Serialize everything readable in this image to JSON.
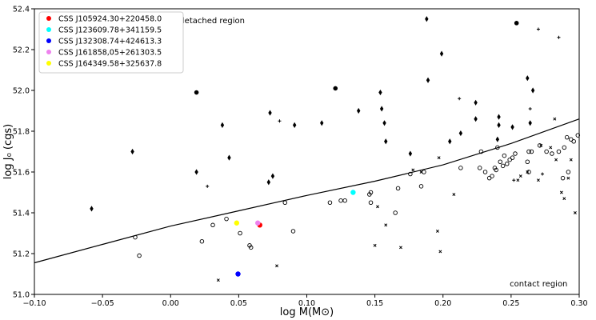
{
  "chart_data": {
    "type": "scatter",
    "xlabel": "log M(M⊙)",
    "ylabel": "log J₀ (cgs)",
    "xlim": [
      -0.1,
      0.3
    ],
    "ylim": [
      51.0,
      52.4
    ],
    "xticks": [
      "−0.10",
      "−0.05",
      "0.00",
      "0.05",
      "0.10",
      "0.15",
      "0.20",
      "0.25",
      "0.30"
    ],
    "xtick_values": [
      -0.1,
      -0.05,
      0.0,
      0.05,
      0.1,
      0.15,
      0.2,
      0.25,
      0.3
    ],
    "yticks": [
      "51.0",
      "51.2",
      "51.4",
      "51.6",
      "51.8",
      "52.0",
      "52.2",
      "52.4"
    ],
    "ytick_values": [
      51.0,
      51.2,
      51.4,
      51.6,
      51.8,
      52.0,
      52.2,
      52.4
    ],
    "grid": false,
    "legend_position": "top-left",
    "annotations": [
      {
        "text": "detached region",
        "x": 0.0065,
        "y": 52.33
      },
      {
        "text": "contact region",
        "x": 0.249,
        "y": 51.04
      }
    ],
    "highlighted": [
      {
        "name": "CSS J105924.30+220458.0",
        "color": "#ff0000",
        "x": 0.0655,
        "y": 51.34
      },
      {
        "name": "CSS J123609.78+341159.5",
        "color": "#00ffff",
        "x": 0.134,
        "y": 51.5
      },
      {
        "name": "CSS J132308.74+424613.3",
        "color": "#0000ff",
        "x": 0.0495,
        "y": 51.1
      },
      {
        "name": "CSS J161858,05+261303.5",
        "color": "#ee82ee",
        "x": 0.064,
        "y": 51.35
      },
      {
        "name": "CSS J164349.58+325637.8",
        "color": "#ffff00",
        "x": 0.0485,
        "y": 51.35
      }
    ],
    "boundary_curve": [
      [
        -0.1,
        51.155
      ],
      [
        -0.05,
        51.245
      ],
      [
        0.0,
        51.335
      ],
      [
        0.05,
        51.41
      ],
      [
        0.1,
        51.485
      ],
      [
        0.15,
        51.555
      ],
      [
        0.2,
        51.635
      ],
      [
        0.25,
        51.74
      ],
      [
        0.3,
        51.86
      ]
    ],
    "series": [
      {
        "marker": "diamond",
        "values": [
          [
            -0.058,
            51.42
          ],
          [
            -0.028,
            51.7
          ],
          [
            0.019,
            51.6
          ],
          [
            0.038,
            51.83
          ],
          [
            0.043,
            51.67
          ],
          [
            0.073,
            51.89
          ],
          [
            0.072,
            51.55
          ],
          [
            0.075,
            51.58
          ],
          [
            0.091,
            51.83
          ],
          [
            0.111,
            51.84
          ],
          [
            0.138,
            51.9
          ],
          [
            0.154,
            51.99
          ],
          [
            0.155,
            51.91
          ],
          [
            0.157,
            51.84
          ],
          [
            0.158,
            51.75
          ],
          [
            0.176,
            51.69
          ],
          [
            0.188,
            52.35
          ],
          [
            0.189,
            52.05
          ],
          [
            0.199,
            52.18
          ],
          [
            0.205,
            51.75
          ],
          [
            0.213,
            51.79
          ],
          [
            0.224,
            51.94
          ],
          [
            0.224,
            51.86
          ],
          [
            0.241,
            51.87
          ],
          [
            0.241,
            51.83
          ],
          [
            0.24,
            51.76
          ],
          [
            0.251,
            51.82
          ],
          [
            0.262,
            52.06
          ],
          [
            0.264,
            51.84
          ],
          [
            0.266,
            52.0
          ]
        ]
      },
      {
        "marker": "filled-circle",
        "values": [
          [
            0.019,
            51.99
          ],
          [
            0.121,
            52.01
          ],
          [
            0.254,
            52.33
          ]
        ]
      },
      {
        "marker": "open-circle",
        "values": [
          [
            -0.026,
            51.28
          ],
          [
            -0.023,
            51.19
          ],
          [
            0.023,
            51.26
          ],
          [
            0.031,
            51.34
          ],
          [
            0.041,
            51.37
          ],
          [
            0.051,
            51.3
          ],
          [
            0.058,
            51.24
          ],
          [
            0.059,
            51.23
          ],
          [
            0.084,
            51.45
          ],
          [
            0.09,
            51.31
          ],
          [
            0.117,
            51.45
          ],
          [
            0.125,
            51.46
          ],
          [
            0.128,
            51.46
          ],
          [
            0.146,
            51.49
          ],
          [
            0.147,
            51.5
          ],
          [
            0.147,
            51.45
          ],
          [
            0.165,
            51.4
          ],
          [
            0.167,
            51.52
          ],
          [
            0.176,
            51.59
          ],
          [
            0.184,
            51.53
          ],
          [
            0.186,
            51.6
          ],
          [
            0.213,
            51.62
          ],
          [
            0.227,
            51.62
          ],
          [
            0.228,
            51.7
          ],
          [
            0.231,
            51.6
          ],
          [
            0.234,
            51.57
          ],
          [
            0.236,
            51.58
          ],
          [
            0.238,
            51.62
          ],
          [
            0.239,
            51.61
          ],
          [
            0.24,
            51.72
          ],
          [
            0.242,
            51.65
          ],
          [
            0.244,
            51.63
          ],
          [
            0.245,
            51.68
          ],
          [
            0.247,
            51.64
          ],
          [
            0.249,
            51.66
          ],
          [
            0.251,
            51.67
          ],
          [
            0.253,
            51.69
          ],
          [
            0.262,
            51.65
          ],
          [
            0.263,
            51.7
          ],
          [
            0.265,
            51.7
          ],
          [
            0.271,
            51.73
          ],
          [
            0.276,
            51.7
          ],
          [
            0.28,
            51.69
          ],
          [
            0.285,
            51.7
          ],
          [
            0.289,
            51.72
          ],
          [
            0.291,
            51.77
          ],
          [
            0.292,
            51.6
          ],
          [
            0.294,
            51.76
          ],
          [
            0.296,
            51.75
          ],
          [
            0.299,
            51.78
          ],
          [
            0.288,
            51.57
          ],
          [
            0.263,
            51.6
          ]
        ]
      },
      {
        "marker": "plus",
        "values": [
          [
            0.027,
            51.53
          ],
          [
            0.08,
            51.85
          ],
          [
            0.212,
            51.96
          ],
          [
            0.264,
            51.91
          ],
          [
            0.27,
            52.3
          ],
          [
            0.285,
            52.26
          ],
          [
            0.252,
            51.56
          ],
          [
            0.273,
            51.59
          ]
        ]
      },
      {
        "marker": "x",
        "values": [
          [
            0.035,
            51.07
          ],
          [
            0.078,
            51.14
          ],
          [
            0.15,
            51.24
          ],
          [
            0.152,
            51.43
          ],
          [
            0.158,
            51.34
          ],
          [
            0.169,
            51.23
          ],
          [
            0.178,
            51.61
          ],
          [
            0.184,
            51.6
          ],
          [
            0.196,
            51.31
          ],
          [
            0.197,
            51.67
          ],
          [
            0.198,
            51.21
          ],
          [
            0.208,
            51.49
          ],
          [
            0.255,
            51.56
          ],
          [
            0.262,
            51.6
          ],
          [
            0.27,
            51.56
          ],
          [
            0.272,
            51.73
          ],
          [
            0.279,
            51.72
          ],
          [
            0.282,
            51.86
          ],
          [
            0.287,
            51.5
          ],
          [
            0.289,
            51.47
          ],
          [
            0.292,
            51.57
          ],
          [
            0.297,
            51.4
          ],
          [
            0.294,
            51.66
          ],
          [
            0.283,
            51.66
          ],
          [
            0.257,
            51.58
          ]
        ]
      }
    ]
  }
}
